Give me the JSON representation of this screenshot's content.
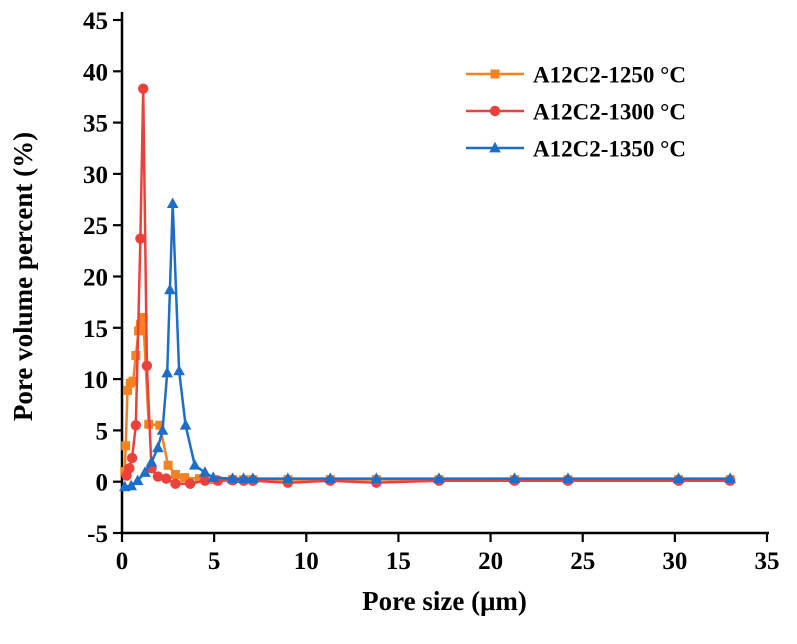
{
  "figure": {
    "background": "#ffffff"
  },
  "chart_data": {
    "type": "line",
    "title": "",
    "xlabel": "Pore size (μm)",
    "ylabel": "Pore volume percent (%)",
    "xlim": [
      0,
      35
    ],
    "ylim": [
      -5,
      45
    ],
    "xticks": [
      0,
      5,
      10,
      15,
      20,
      25,
      30,
      35
    ],
    "yticks": [
      -5,
      0,
      5,
      10,
      15,
      20,
      25,
      30,
      35,
      40,
      45
    ],
    "grid": false,
    "legend_position": "upper-right-inside",
    "axis_color": "#000000",
    "series": [
      {
        "name": "A12C2-1250 °C",
        "color": "#F58220",
        "marker": "square",
        "points": [
          [
            0.15,
            1.0
          ],
          [
            0.2,
            3.5
          ],
          [
            0.3,
            8.9
          ],
          [
            0.45,
            9.6
          ],
          [
            0.6,
            9.8
          ],
          [
            0.75,
            12.3
          ],
          [
            0.9,
            14.7
          ],
          [
            1.0,
            15.3
          ],
          [
            1.15,
            16.0
          ],
          [
            1.45,
            5.6
          ],
          [
            2.05,
            5.5
          ],
          [
            2.5,
            1.6
          ],
          [
            2.9,
            0.7
          ],
          [
            3.4,
            0.4
          ],
          [
            4.2,
            0.3
          ],
          [
            5.0,
            0.2
          ],
          [
            6.0,
            0.2
          ],
          [
            6.6,
            0.2
          ],
          [
            7.1,
            0.2
          ],
          [
            9.0,
            0.2
          ],
          [
            11.3,
            0.2
          ],
          [
            13.8,
            0.2
          ],
          [
            17.2,
            0.2
          ],
          [
            21.3,
            0.2
          ],
          [
            24.2,
            0.2
          ],
          [
            30.2,
            0.2
          ],
          [
            33.0,
            0.2
          ]
        ]
      },
      {
        "name": "A12C2-1300 °C",
        "color": "#EB413D",
        "marker": "circle",
        "points": [
          [
            0.25,
            0.6
          ],
          [
            0.4,
            1.3
          ],
          [
            0.55,
            2.3
          ],
          [
            0.75,
            5.5
          ],
          [
            1.0,
            23.7
          ],
          [
            1.15,
            38.3
          ],
          [
            1.35,
            11.3
          ],
          [
            1.6,
            1.3
          ],
          [
            1.95,
            0.5
          ],
          [
            2.4,
            0.3
          ],
          [
            2.9,
            -0.2
          ],
          [
            3.7,
            -0.2
          ],
          [
            4.5,
            0.1
          ],
          [
            5.2,
            0.1
          ],
          [
            6.0,
            0.15
          ],
          [
            6.6,
            0.1
          ],
          [
            7.1,
            0.1
          ],
          [
            9.0,
            -0.1
          ],
          [
            11.3,
            0.1
          ],
          [
            13.8,
            -0.1
          ],
          [
            17.2,
            0.1
          ],
          [
            21.3,
            0.1
          ],
          [
            24.2,
            0.1
          ],
          [
            30.2,
            0.1
          ],
          [
            33.0,
            0.1
          ]
        ]
      },
      {
        "name": "A12C2-1350 °C",
        "color": "#1C6EC8",
        "marker": "triangle",
        "points": [
          [
            0.15,
            -0.5
          ],
          [
            0.5,
            -0.4
          ],
          [
            0.85,
            0.1
          ],
          [
            1.25,
            0.9
          ],
          [
            1.6,
            1.9
          ],
          [
            1.95,
            3.3
          ],
          [
            2.2,
            5.0
          ],
          [
            2.45,
            10.6
          ],
          [
            2.6,
            18.7
          ],
          [
            2.75,
            27.1
          ],
          [
            3.1,
            10.8
          ],
          [
            3.45,
            5.5
          ],
          [
            3.95,
            1.6
          ],
          [
            4.5,
            0.9
          ],
          [
            4.95,
            0.4
          ],
          [
            6.0,
            0.3
          ],
          [
            6.6,
            0.3
          ],
          [
            7.1,
            0.3
          ],
          [
            9.0,
            0.3
          ],
          [
            11.3,
            0.3
          ],
          [
            13.8,
            0.3
          ],
          [
            17.2,
            0.3
          ],
          [
            21.3,
            0.3
          ],
          [
            24.2,
            0.3
          ],
          [
            30.2,
            0.3
          ],
          [
            33.0,
            0.3
          ]
        ]
      }
    ]
  }
}
